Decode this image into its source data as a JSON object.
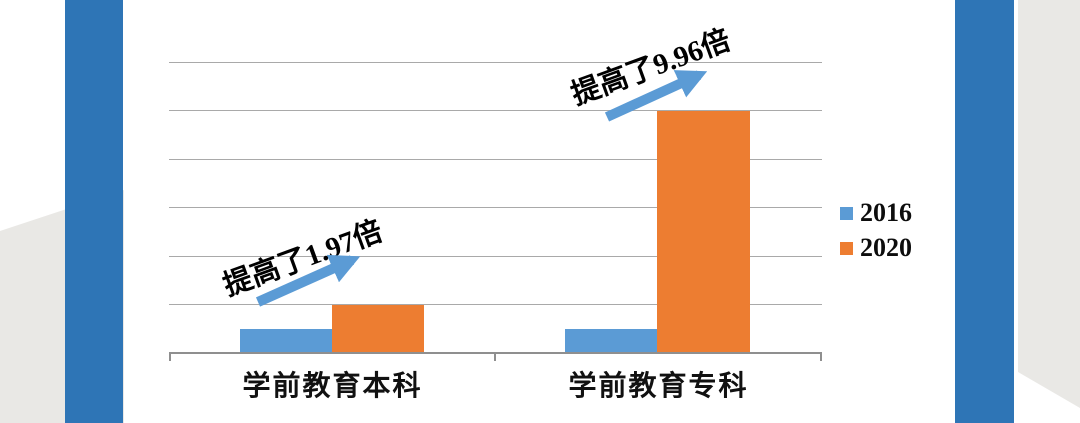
{
  "chart_data": {
    "type": "bar",
    "categories": [
      "学前教育本科",
      "学前教育专科"
    ],
    "series": [
      {
        "name": "2016",
        "color": "#5b9bd5",
        "values": [
          0.5,
          0.5
        ]
      },
      {
        "name": "2020",
        "color": "#ed7d31",
        "values": [
          0.985,
          4.98
        ]
      }
    ],
    "title": "",
    "xlabel": "",
    "ylabel": "",
    "ylim": [
      0,
      6
    ],
    "gridline_step": 1,
    "grid": true,
    "legend_position": "right",
    "annotations": [
      {
        "text": "提高了1.97倍",
        "target": "学前教育本科"
      },
      {
        "text": "提高了9.96倍",
        "target": "学前教育专科"
      }
    ]
  },
  "decorations": {
    "accent_bar_color": "#2e75b6",
    "corner_shape_color": "#e9e8e5",
    "arrow_color": "#5b9bd5",
    "gridline_color": "#a9a9a9"
  }
}
